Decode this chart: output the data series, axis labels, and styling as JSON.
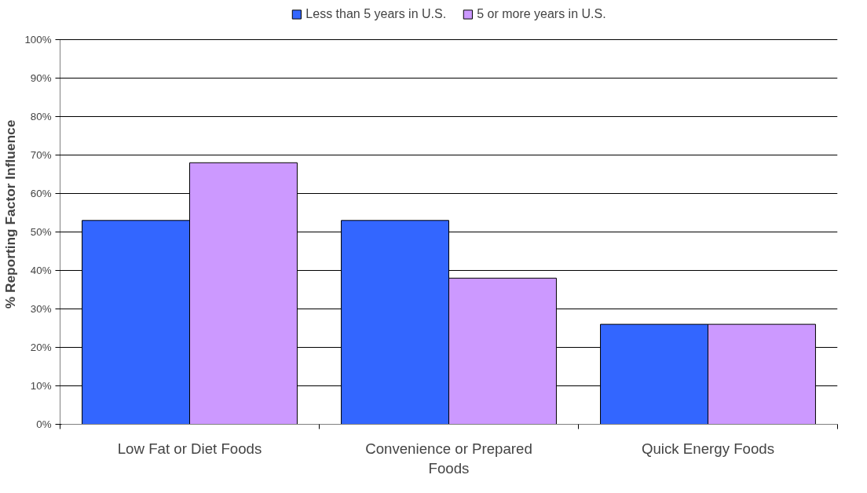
{
  "chart_data": {
    "type": "bar",
    "ylabel": "% Reporting Factor Influence",
    "categories": [
      "Low Fat or Diet Foods",
      "Convenience or Prepared\nFoods",
      "Quick Energy Foods"
    ],
    "series": [
      {
        "name": "Less than 5 years in U.S.",
        "color": "#3366ff",
        "values": [
          53,
          53,
          26
        ]
      },
      {
        "name": "5 or more years in U.S.",
        "color": "#cc99ff",
        "values": [
          68,
          38,
          26
        ]
      }
    ],
    "ylim": [
      0,
      100
    ],
    "yticks": [
      {
        "value": 0,
        "label": "0%"
      },
      {
        "value": 10,
        "label": "10%"
      },
      {
        "value": 20,
        "label": "20%"
      },
      {
        "value": 30,
        "label": "30%"
      },
      {
        "value": 40,
        "label": "40%"
      },
      {
        "value": 50,
        "label": "50%"
      },
      {
        "value": 60,
        "label": "60%"
      },
      {
        "value": 70,
        "label": "70%"
      },
      {
        "value": 80,
        "label": "80%"
      },
      {
        "value": 90,
        "label": "90%"
      },
      {
        "value": 100,
        "label": "100%"
      }
    ],
    "grid": "y",
    "legend": "top"
  }
}
